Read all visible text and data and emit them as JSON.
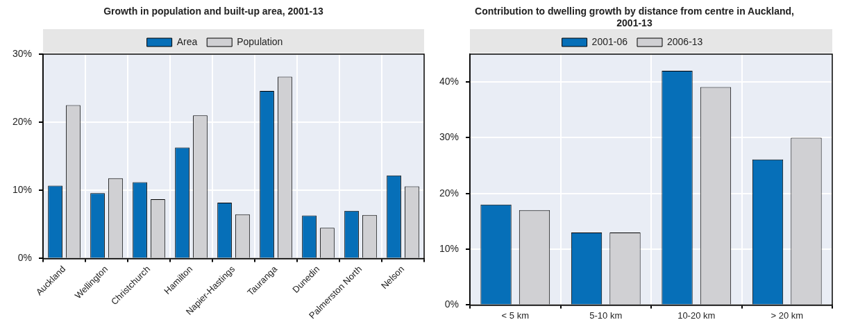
{
  "chart_data": [
    {
      "type": "bar",
      "title": "Growth in population and built-up area, 2001-13",
      "categories": [
        "Auckland",
        "Wellington",
        "Christchurch",
        "Hamilton",
        "Napier-Hastings",
        "Tauranga",
        "Dunedin",
        "Palmerston North",
        "Nelson"
      ],
      "series": [
        {
          "name": "Area",
          "color": "#066fb8",
          "values": [
            10.7,
            9.6,
            11.2,
            16.3,
            8.2,
            24.6,
            6.3,
            7.0,
            12.2
          ]
        },
        {
          "name": "Population",
          "color": "#d0d0d3",
          "values": [
            22.5,
            11.8,
            8.7,
            21.0,
            6.5,
            26.7,
            4.5,
            6.4,
            10.6
          ]
        }
      ],
      "ylim": [
        0,
        30
      ],
      "yticks": [
        {
          "value": 0,
          "label": "0%"
        },
        {
          "value": 10,
          "label": "10%"
        },
        {
          "value": 20,
          "label": "20%"
        },
        {
          "value": 30,
          "label": "30%"
        }
      ],
      "grid": true,
      "legend": "top"
    },
    {
      "type": "bar",
      "title": "Contribution to dwelling growth by distance from centre in Auckland, 2001-13",
      "categories": [
        "< 5 km",
        "5-10 km",
        "10-20 km",
        "> 20 km"
      ],
      "series": [
        {
          "name": "2001-06",
          "color": "#066fb8",
          "values": [
            18.0,
            13.0,
            42.0,
            26.1
          ]
        },
        {
          "name": "2006-13",
          "color": "#d0d0d3",
          "values": [
            17.0,
            13.0,
            39.1,
            30.0
          ]
        }
      ],
      "ylim": [
        0,
        45
      ],
      "yticks": [
        {
          "value": 0,
          "label": "0%"
        },
        {
          "value": 10,
          "label": "10%"
        },
        {
          "value": 20,
          "label": "20%"
        },
        {
          "value": 30,
          "label": "30%"
        },
        {
          "value": 40,
          "label": "40%"
        }
      ],
      "grid": true,
      "legend": "top"
    }
  ]
}
